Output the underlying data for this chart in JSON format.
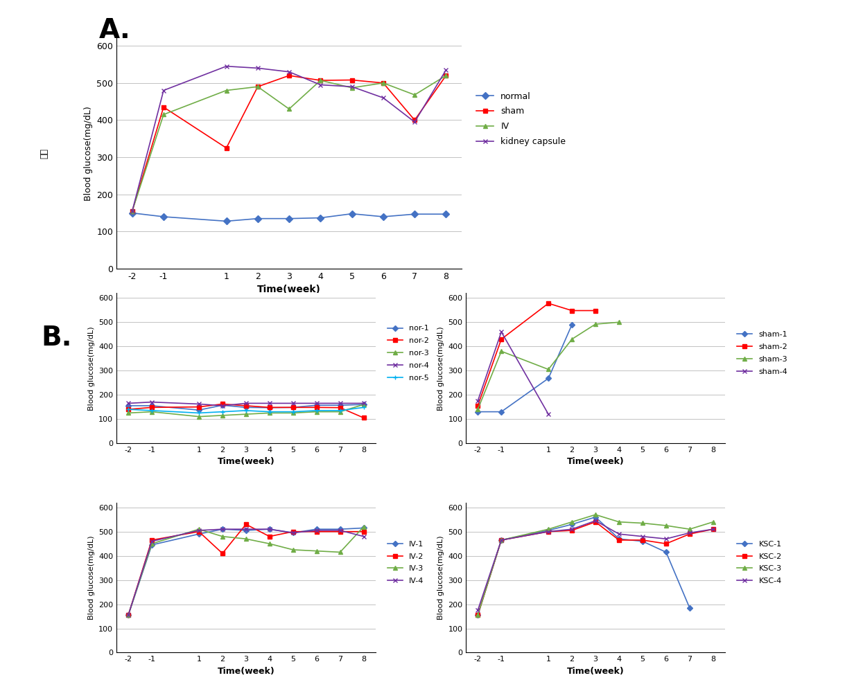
{
  "x_ticks": [
    -2,
    -1,
    1,
    2,
    3,
    4,
    5,
    6,
    7,
    8
  ],
  "panel_A": {
    "normal": [
      150,
      140,
      128,
      135,
      135,
      137,
      148,
      140,
      147,
      147
    ],
    "sham": [
      155,
      435,
      325,
      490,
      520,
      507,
      508,
      500,
      400,
      520
    ],
    "IV": [
      155,
      415,
      480,
      490,
      430,
      507,
      487,
      500,
      468,
      520
    ],
    "kidney_capsule": [
      155,
      480,
      545,
      540,
      530,
      495,
      490,
      460,
      395,
      535
    ],
    "colors": {
      "normal": "#4472C4",
      "sham": "#FF0000",
      "IV": "#70AD47",
      "kidney_capsule": "#7030A0"
    },
    "markers": {
      "normal": "D",
      "sham": "s",
      "IV": "^",
      "kidney_capsule": "x"
    },
    "labels": {
      "normal": "normal",
      "sham": "sham",
      "IV": "IV",
      "kidney_capsule": "kidney capsule"
    }
  },
  "panel_nor": {
    "nor-1": [
      155,
      155,
      137,
      157,
      148,
      147,
      148,
      157,
      157,
      160
    ],
    "nor-2": [
      140,
      148,
      150,
      162,
      155,
      148,
      148,
      148,
      147,
      105
    ],
    "nor-3": [
      125,
      130,
      110,
      115,
      120,
      125,
      125,
      130,
      130,
      160
    ],
    "nor-4": [
      165,
      170,
      162,
      155,
      165,
      165,
      165,
      165,
      165,
      165
    ],
    "nor-5": [
      140,
      135,
      125,
      130,
      135,
      130,
      130,
      135,
      135,
      148
    ],
    "colors": {
      "nor-1": "#4472C4",
      "nor-2": "#FF0000",
      "nor-3": "#70AD47",
      "nor-4": "#7030A0",
      "nor-5": "#00B0F0"
    },
    "markers": {
      "nor-1": "D",
      "nor-2": "s",
      "nor-3": "^",
      "nor-4": "x",
      "nor-5": "+"
    }
  },
  "panel_sham": {
    "sham-1": [
      130,
      130,
      268,
      490,
      null,
      null,
      null,
      null,
      null,
      null
    ],
    "sham-2": [
      155,
      430,
      578,
      548,
      548,
      null,
      null,
      null,
      null,
      null
    ],
    "sham-3": [
      140,
      380,
      305,
      430,
      492,
      500,
      null,
      null,
      null,
      null
    ],
    "sham-4": [
      175,
      460,
      120,
      null,
      null,
      null,
      null,
      null,
      null,
      null
    ],
    "colors": {
      "sham-1": "#4472C4",
      "sham-2": "#FF0000",
      "sham-3": "#70AD47",
      "sham-4": "#7030A0"
    },
    "markers": {
      "sham-1": "D",
      "sham-2": "s",
      "sham-3": "^",
      "sham-4": "x"
    }
  },
  "panel_IV": {
    "IV-1": [
      155,
      445,
      490,
      510,
      505,
      510,
      495,
      510,
      510,
      515
    ],
    "IV-2": [
      155,
      465,
      500,
      410,
      530,
      480,
      500,
      500,
      500,
      500
    ],
    "IV-3": [
      155,
      450,
      510,
      480,
      470,
      450,
      425,
      420,
      415,
      520
    ],
    "IV-4": [
      155,
      460,
      505,
      510,
      510,
      510,
      495,
      505,
      505,
      480
    ],
    "colors": {
      "IV-1": "#4472C4",
      "IV-2": "#FF0000",
      "IV-3": "#70AD47",
      "IV-4": "#7030A0"
    },
    "markers": {
      "IV-1": "D",
      "IV-2": "s",
      "IV-3": "^",
      "IV-4": "x"
    }
  },
  "panel_KSC": {
    "KSC-1": [
      155,
      465,
      505,
      530,
      560,
      470,
      460,
      415,
      185,
      null
    ],
    "KSC-2": [
      155,
      465,
      500,
      505,
      540,
      465,
      465,
      450,
      490,
      510
    ],
    "KSC-3": [
      155,
      465,
      510,
      540,
      570,
      540,
      535,
      525,
      510,
      540
    ],
    "KSC-4": [
      175,
      465,
      500,
      510,
      545,
      490,
      480,
      470,
      495,
      510
    ],
    "colors": {
      "KSC-1": "#4472C4",
      "KSC-2": "#FF0000",
      "KSC-3": "#70AD47",
      "KSC-4": "#7030A0"
    },
    "markers": {
      "KSC-1": "D",
      "KSC-2": "s",
      "KSC-3": "^",
      "KSC-4": "x"
    }
  },
  "ylabel": "Blood glucose(mg/dL)",
  "xlabel": "Time(week)",
  "ylim": [
    0,
    620
  ],
  "yticks": [
    0,
    100,
    200,
    300,
    400,
    500,
    600
  ],
  "grid_color": "#AAAAAA",
  "font_size": 9,
  "label_A": "A.",
  "label_B": "B.",
  "rotated_label": "혁당"
}
